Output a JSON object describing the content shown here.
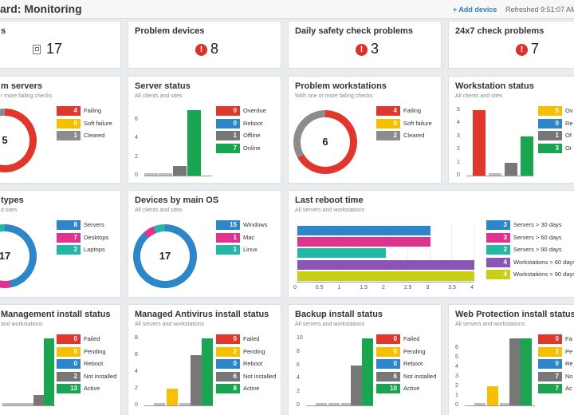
{
  "header": {
    "title": "ard: Monitoring",
    "add_device": "+ Add device",
    "refreshed": "Refreshed 9:51:07 AM"
  },
  "colors": {
    "red": "#e0362c",
    "yellow": "#f6c000",
    "blue": "#2c86c9",
    "gray": "#777777",
    "green": "#1aa651",
    "pink": "#e0338f",
    "teal": "#22b8a6",
    "purple": "#8b55b8",
    "olive": "#c9cf17",
    "lightgray": "#cccccc"
  },
  "icons": {
    "alert": "alert-diamond-icon",
    "devices": "document-icon",
    "add": "plus-icon"
  },
  "kpis": [
    {
      "title": "s",
      "value": "17",
      "icon": "document-icon"
    },
    {
      "title": "Problem devices",
      "value": "8",
      "icon": "alert-diamond-icon"
    },
    {
      "title": "Daily safety check problems",
      "value": "3",
      "icon": "alert-diamond-icon"
    },
    {
      "title": "24x7 check problems",
      "value": "7",
      "icon": "alert-diamond-icon"
    }
  ],
  "problem_servers": {
    "title": "m servers",
    "subtitle": "r more failing checks",
    "center": "5",
    "legend": [
      {
        "value": "4",
        "label": "Failing",
        "color": "#e0362c"
      },
      {
        "value": "0",
        "label": "Soft failure",
        "color": "#f6c000"
      },
      {
        "value": "1",
        "label": "Cleared",
        "color": "#8c8c8c"
      }
    ],
    "slices": [
      {
        "value": 4,
        "color": "#e0362c"
      },
      {
        "value": 1,
        "color": "#8c8c8c"
      }
    ]
  },
  "server_status": {
    "title": "Server status",
    "subtitle": "All clients and sites",
    "legend": [
      {
        "value": "0",
        "label": "Overdue",
        "color": "#e0362c"
      },
      {
        "value": "0",
        "label": "Reboot",
        "color": "#2c86c9"
      },
      {
        "value": "1",
        "label": "Offline",
        "color": "#777777"
      },
      {
        "value": "7",
        "label": "Online",
        "color": "#1aa651"
      }
    ]
  },
  "problem_workstations": {
    "title": "Problem workstations",
    "subtitle": "With one or more failing checks",
    "center": "6",
    "legend": [
      {
        "value": "4",
        "label": "Failing",
        "color": "#e0362c"
      },
      {
        "value": "0",
        "label": "Soft failure",
        "color": "#f6c000"
      },
      {
        "value": "2",
        "label": "Cleared",
        "color": "#8c8c8c"
      }
    ],
    "slices": [
      {
        "value": 4,
        "color": "#e0362c"
      },
      {
        "value": 2,
        "color": "#8c8c8c"
      }
    ]
  },
  "workstation_status": {
    "title": "Workstation status",
    "subtitle": "All clients and sites",
    "legend": [
      {
        "value": "5",
        "label": "Ov",
        "color": "#f6c000"
      },
      {
        "value": "0",
        "label": "Re",
        "color": "#2c86c9"
      },
      {
        "value": "1",
        "label": "Of",
        "color": "#777777"
      },
      {
        "value": "3",
        "label": "Or",
        "color": "#1aa651"
      }
    ]
  },
  "device_types": {
    "title": "types",
    "subtitle": "d sites",
    "center": "17",
    "legend": [
      {
        "value": "8",
        "label": "Servers",
        "color": "#2c86c9"
      },
      {
        "value": "7",
        "label": "Desktops",
        "color": "#e0338f"
      },
      {
        "value": "2",
        "label": "Laptops",
        "color": "#22b8a6"
      }
    ],
    "slices": [
      {
        "value": 8,
        "color": "#2c86c9"
      },
      {
        "value": 7,
        "color": "#e0338f"
      },
      {
        "value": 2,
        "color": "#22b8a6"
      }
    ]
  },
  "devices_os": {
    "title": "Devices by main OS",
    "subtitle": "All clients and sites",
    "center": "17",
    "legend": [
      {
        "value": "15",
        "label": "Windows",
        "color": "#2c86c9"
      },
      {
        "value": "1",
        "label": "Mac",
        "color": "#e0338f"
      },
      {
        "value": "1",
        "label": "Linux",
        "color": "#22b8a6"
      }
    ],
    "slices": [
      {
        "value": 15,
        "color": "#2c86c9"
      },
      {
        "value": 1,
        "color": "#e0338f"
      },
      {
        "value": 1,
        "color": "#22b8a6"
      }
    ]
  },
  "last_reboot": {
    "title": "Last reboot time",
    "subtitle": "All servers and workstations",
    "legend": [
      {
        "value": "3",
        "label": "Servers > 30 days",
        "color": "#2c86c9"
      },
      {
        "value": "3",
        "label": "Servers > 60 days",
        "color": "#e0338f"
      },
      {
        "value": "2",
        "label": "Servers > 90 days",
        "color": "#22b8a6"
      },
      {
        "value": "4",
        "label": "Workstations > 60 days",
        "color": "#8b55b8"
      },
      {
        "value": "4",
        "label": "Workstations > 90 days",
        "color": "#c9cf17"
      }
    ]
  },
  "mgmt_install": {
    "title": "Management install status",
    "subtitle": "and workstations",
    "legend": [
      {
        "value": "0",
        "label": "Failed",
        "color": "#e0362c"
      },
      {
        "value": "0",
        "label": "Pending",
        "color": "#f6c000"
      },
      {
        "value": "0",
        "label": "Reboot",
        "color": "#2c86c9"
      },
      {
        "value": "2",
        "label": "Not installed",
        "color": "#777777"
      },
      {
        "value": "13",
        "label": "Active",
        "color": "#1aa651"
      }
    ]
  },
  "av_install": {
    "title": "Managed Antivirus install status",
    "subtitle": "All servers and workstations",
    "legend": [
      {
        "value": "0",
        "label": "Failed",
        "color": "#e0362c"
      },
      {
        "value": "2",
        "label": "Pending",
        "color": "#f6c000"
      },
      {
        "value": "0",
        "label": "Reboot",
        "color": "#2c86c9"
      },
      {
        "value": "6",
        "label": "Not installed",
        "color": "#777777"
      },
      {
        "value": "8",
        "label": "Active",
        "color": "#1aa651"
      }
    ]
  },
  "backup_install": {
    "title": "Backup install status",
    "subtitle": "All servers and workstations",
    "legend": [
      {
        "value": "0",
        "label": "Failed",
        "color": "#e0362c"
      },
      {
        "value": "0",
        "label": "Pending",
        "color": "#f6c000"
      },
      {
        "value": "0",
        "label": "Reboot",
        "color": "#2c86c9"
      },
      {
        "value": "6",
        "label": "Not installed",
        "color": "#777777"
      },
      {
        "value": "10",
        "label": "Active",
        "color": "#1aa651"
      }
    ]
  },
  "webprot_install": {
    "title": "Web Protection install status",
    "subtitle": "All servers and workstations",
    "legend": [
      {
        "value": "0",
        "label": "Fa",
        "color": "#e0362c"
      },
      {
        "value": "2",
        "label": "Pe",
        "color": "#f6c000"
      },
      {
        "value": "0",
        "label": "Re",
        "color": "#2c86c9"
      },
      {
        "value": "7",
        "label": "No",
        "color": "#777777"
      },
      {
        "value": "7",
        "label": "Ac",
        "color": "#1aa651"
      }
    ]
  },
  "chart_data": [
    {
      "type": "bar",
      "id": "server_status",
      "categories": [
        "Overdue",
        "Reboot",
        "Offline",
        "Online"
      ],
      "values": [
        0,
        0,
        1,
        7
      ],
      "yticks": [
        "0",
        "2",
        "4",
        "6"
      ],
      "ylim": [
        0,
        7
      ]
    },
    {
      "type": "bar",
      "id": "workstation_status",
      "categories": [
        "Overdue",
        "Reboot",
        "Offline",
        "Online"
      ],
      "values": [
        5,
        0,
        1,
        3
      ],
      "yticks": [
        "0",
        "1",
        "2",
        "3",
        "4",
        "5"
      ],
      "ylim": [
        0,
        5
      ]
    },
    {
      "type": "bar",
      "id": "last_reboot",
      "orientation": "horizontal",
      "categories": [
        "Servers > 30 days",
        "Servers > 60 days",
        "Servers > 90 days",
        "Workstations > 60 days",
        "Workstations > 90 days"
      ],
      "values": [
        3,
        3,
        2,
        4,
        4
      ],
      "xticks": [
        "0",
        "0.5",
        "1",
        "1.5",
        "2",
        "2.5",
        "3",
        "3.5",
        "4"
      ],
      "xlim": [
        0,
        4
      ]
    },
    {
      "type": "bar",
      "id": "mgmt_install",
      "categories": [
        "Failed",
        "Pending",
        "Reboot",
        "Not installed",
        "Active"
      ],
      "values": [
        0,
        0,
        0,
        2,
        13
      ],
      "yticks": [],
      "ylim": [
        0,
        13
      ]
    },
    {
      "type": "bar",
      "id": "av_install",
      "categories": [
        "Failed",
        "Pending",
        "Reboot",
        "Not installed",
        "Active"
      ],
      "values": [
        0,
        2,
        0,
        6,
        8
      ],
      "yticks": [
        "0",
        "2",
        "4",
        "6",
        "8"
      ],
      "ylim": [
        0,
        8
      ]
    },
    {
      "type": "bar",
      "id": "backup_install",
      "categories": [
        "Failed",
        "Pending",
        "Reboot",
        "Not installed",
        "Active"
      ],
      "values": [
        0,
        0,
        0,
        6,
        10
      ],
      "yticks": [
        "0",
        "2",
        "4",
        "6",
        "8",
        "10"
      ],
      "ylim": [
        0,
        10
      ]
    },
    {
      "type": "bar",
      "id": "webprot_install",
      "categories": [
        "Failed",
        "Pending",
        "Reboot",
        "Not installed",
        "Active"
      ],
      "values": [
        0,
        2,
        0,
        7,
        7
      ],
      "yticks": [
        "0",
        "1",
        "2",
        "3",
        "4",
        "5",
        "6"
      ],
      "ylim": [
        0,
        7
      ]
    }
  ]
}
